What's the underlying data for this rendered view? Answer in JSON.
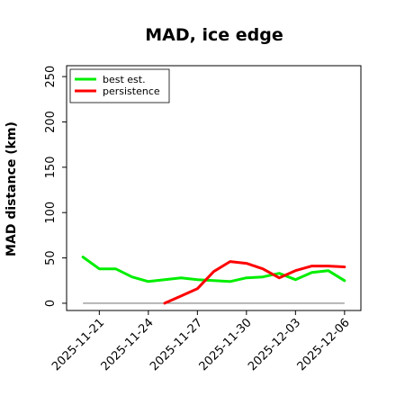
{
  "chart_data": {
    "type": "line",
    "title": "MAD, ice edge",
    "ylabel": "MAD distance (km)",
    "xlabel": "",
    "ylim": [
      -8,
      262
    ],
    "xlim": [
      "2025-11-19",
      "2025-12-07"
    ],
    "yticks": [
      0,
      50,
      100,
      150,
      200,
      250
    ],
    "xticks": [
      "2025-11-21",
      "2025-11-24",
      "2025-11-27",
      "2025-11-30",
      "2025-12-03",
      "2025-12-06"
    ],
    "grid": false,
    "legend_position": "top-left",
    "reference_line": {
      "y": 0,
      "x_start": "2025-11-20",
      "x_end": "2025-12-06",
      "color": "#808080"
    },
    "series": [
      {
        "name": "best est.",
        "color": "#00ee00",
        "x": [
          "2025-11-20",
          "2025-11-21",
          "2025-11-22",
          "2025-11-23",
          "2025-11-24",
          "2025-11-25",
          "2025-11-26",
          "2025-11-27",
          "2025-11-28",
          "2025-11-29",
          "2025-11-30",
          "2025-12-01",
          "2025-12-02",
          "2025-12-03",
          "2025-12-04",
          "2025-12-05",
          "2025-12-06"
        ],
        "y": [
          51,
          38,
          38,
          29,
          24,
          26,
          28,
          26,
          25,
          24,
          28,
          29,
          33,
          26,
          34,
          36,
          25
        ]
      },
      {
        "name": "persistence",
        "color": "#ff0000",
        "x": [
          "2025-11-25",
          "2025-11-26",
          "2025-11-27",
          "2025-11-28",
          "2025-11-29",
          "2025-11-30",
          "2025-12-01",
          "2025-12-02",
          "2025-12-03",
          "2025-12-04",
          "2025-12-05",
          "2025-12-06"
        ],
        "y": [
          0,
          8,
          16,
          35,
          46,
          44,
          38,
          28,
          36,
          41,
          41,
          40
        ]
      }
    ]
  }
}
